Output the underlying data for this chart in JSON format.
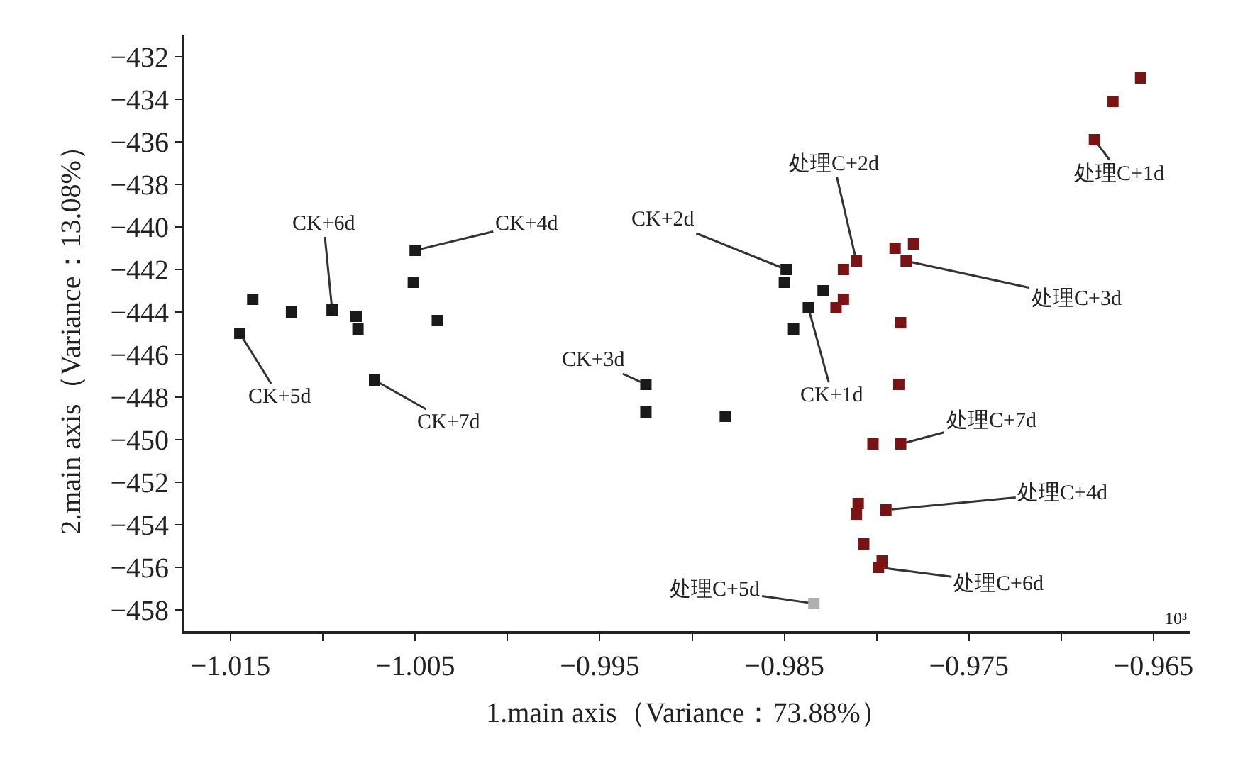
{
  "chart_data": {
    "type": "scatter",
    "xlabel": "1.main axis（Variance：73.88%）",
    "ylabel": "2.main axis（Variance：13.08%）",
    "xlim": [
      -1.0175,
      -0.963
    ],
    "ylim": [
      -459,
      -431
    ],
    "xticks": [
      -1.015,
      {
        "value": -1.01,
        "label": null
      },
      -1.005,
      {
        "value": -1.0,
        "label": null
      },
      -0.995,
      {
        "value": -0.99,
        "label": null
      },
      -0.985,
      {
        "value": -0.98,
        "label": null
      },
      -0.975,
      {
        "value": -0.97,
        "label": null
      },
      -0.965
    ],
    "yticks": [
      -458,
      -456,
      -454,
      -452,
      -450,
      -448,
      -446,
      -444,
      -442,
      -440,
      -438,
      -436,
      -434,
      -432
    ],
    "marker": "square",
    "series": [
      {
        "color": "#1a1a1a",
        "x": [
          -1.0138,
          -1.0145,
          -1.0117,
          -1.0095,
          -1.0082,
          -1.0081,
          -1.005,
          -1.0051,
          -1.0038,
          -1.0072,
          -0.9849,
          -0.985,
          -0.9845,
          -0.9829,
          -0.9837,
          -0.9925,
          -0.9925,
          -0.9882
        ],
        "values": [
          -443.4,
          -445.0,
          -444.0,
          -443.9,
          -444.2,
          -444.8,
          -441.1,
          -442.6,
          -444.4,
          -447.2,
          -442.0,
          -442.6,
          -444.8,
          -443.0,
          -443.8,
          -447.4,
          -448.7,
          -448.9
        ]
      },
      {
        "color": "#7a1414",
        "x": [
          -0.9657,
          -0.9672,
          -0.9682,
          -0.978,
          -0.979,
          -0.9784,
          -0.9787,
          -0.9811,
          -0.9818,
          -0.9818,
          -0.9822,
          -0.9788,
          -0.9802,
          -0.9787,
          -0.981,
          -0.9795,
          -0.9811,
          -0.9807,
          -0.9797,
          -0.9799
        ],
        "values": [
          -433.0,
          -434.1,
          -435.9,
          -440.8,
          -441.0,
          -441.6,
          -444.5,
          -441.6,
          -442.0,
          -443.4,
          -443.8,
          -447.4,
          -450.2,
          -450.2,
          -453.0,
          -453.3,
          -453.5,
          -454.9,
          -455.7,
          -456.0
        ]
      },
      {
        "color": "#b0b0b0",
        "x": [
          -0.9834
        ],
        "values": [
          -457.7
        ]
      }
    ],
    "annotations": [
      {
        "text": "CK+6d",
        "x": -1.0095,
        "y": -443.9
      },
      {
        "text": "CK+4d",
        "x": -1.005,
        "y": -441.1
      },
      {
        "text": "CK+2d",
        "x": -0.9849,
        "y": -442.0
      },
      {
        "text": "处理C+2d",
        "x": -0.9811,
        "y": -441.6
      },
      {
        "text": "处理C+1d",
        "x": -0.9682,
        "y": -435.9
      },
      {
        "text": "处理C+3d",
        "x": -0.9784,
        "y": -441.6
      },
      {
        "text": "CK+5d",
        "x": -1.0145,
        "y": -445.0
      },
      {
        "text": "CK+7d",
        "x": -1.0072,
        "y": -447.2
      },
      {
        "text": "CK+3d",
        "x": -0.9925,
        "y": -447.4
      },
      {
        "text": "CK+1d",
        "x": -0.9837,
        "y": -443.8
      },
      {
        "text": "处理C+7d",
        "x": -0.9787,
        "y": -450.2
      },
      {
        "text": "处理C+4d",
        "x": -0.9795,
        "y": -453.3
      },
      {
        "text": "处理C+6d",
        "x": -0.9799,
        "y": -456.0
      },
      {
        "text": "处理C+5d",
        "x": -0.9834,
        "y": -457.7
      },
      "10³"
    ]
  }
}
